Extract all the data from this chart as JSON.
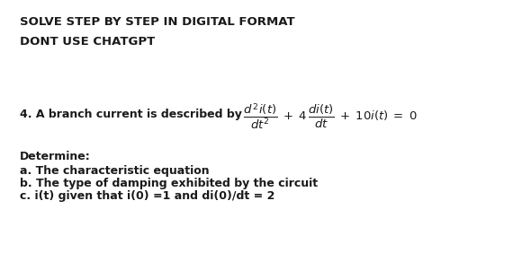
{
  "title1": "SOLVE STEP BY STEP IN DIGITAL FORMAT",
  "title2": "DONT USE CHATGPT",
  "problem_prefix": "4. A branch current is described by",
  "determine_label": "Determine:",
  "item_a": "a. The characteristic equation",
  "item_b": "b. The type of damping exhibited by the circuit",
  "item_c": "c. i(t) given that i(0) =1 and di(0)/dt = 2",
  "bg_color": "#ffffff",
  "text_color": "#1a1a1a",
  "title_fontsize": 9.5,
  "body_fontsize": 9.0,
  "eq_fontsize": 9.5
}
